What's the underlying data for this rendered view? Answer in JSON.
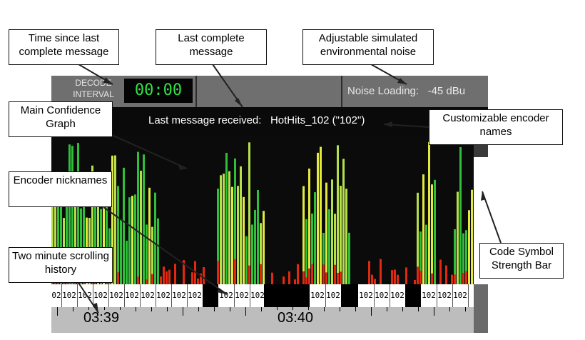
{
  "callouts": {
    "time_since": "Time since last complete message",
    "last_complete": "Last complete message",
    "noise": "Adjustable simulated environmental noise",
    "confidence": "Main Confidence Graph",
    "encoder_names": "Customizable encoder names",
    "nicknames": "Encoder nicknames",
    "history": "Two minute scrolling history",
    "strength": "Code Symbol Strength Bar"
  },
  "decode": {
    "label": "DECODE INTERVAL",
    "timer": "00:00"
  },
  "noise": {
    "label": "Noise Loading:",
    "value": "-45 dBu"
  },
  "message": {
    "prefix": "Last message received:",
    "value": "HotHits_102 (\"102\")"
  },
  "nicknames": [
    "02",
    "102",
    "102",
    "102",
    "102",
    "102",
    "102",
    "102",
    "102",
    "102",
    "102",
    "102",
    "102",
    "102",
    "102",
    "102",
    "102",
    "102",
    "102",
    "102",
    "102"
  ],
  "timeline": {
    "labels": [
      "03:39",
      "03:40"
    ]
  },
  "colors": {
    "green": "#2fbf3a",
    "lime": "#b6e04a",
    "yellow": "#e3ea3c",
    "red": "#e02a10",
    "panel": "#0b0b0b"
  }
}
